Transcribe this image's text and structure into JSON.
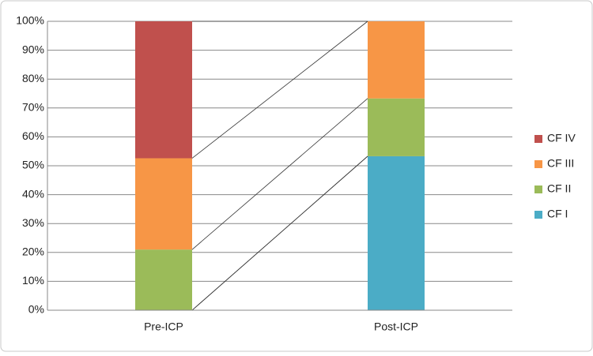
{
  "chart_data": {
    "type": "stacked_bar",
    "categories": [
      "Pre-ICP",
      "Post-ICP"
    ],
    "series": [
      {
        "name": "CF I",
        "color": "#4bacc6",
        "values": [
          0,
          53.3
        ]
      },
      {
        "name": "CF II",
        "color": "#9bbb59",
        "values": [
          21,
          20
        ]
      },
      {
        "name": "CF III",
        "color": "#f79646",
        "values": [
          31.6,
          26.7
        ]
      },
      {
        "name": "CF IV",
        "color": "#c0504d",
        "values": [
          47.4,
          0
        ]
      }
    ],
    "ylim": [
      0,
      100
    ],
    "yticks": [
      {
        "value": 0,
        "label": "0%"
      },
      {
        "value": 10,
        "label": "10%"
      },
      {
        "value": 20,
        "label": "20%"
      },
      {
        "value": 30,
        "label": "30%"
      },
      {
        "value": 40,
        "label": "40%"
      },
      {
        "value": 50,
        "label": "50%"
      },
      {
        "value": 60,
        "label": "60%"
      },
      {
        "value": 70,
        "label": "70%"
      },
      {
        "value": 80,
        "label": "80%"
      },
      {
        "value": 90,
        "label": "90%"
      },
      {
        "value": 100,
        "label": "100%"
      }
    ],
    "grid": true,
    "legend": "right"
  }
}
